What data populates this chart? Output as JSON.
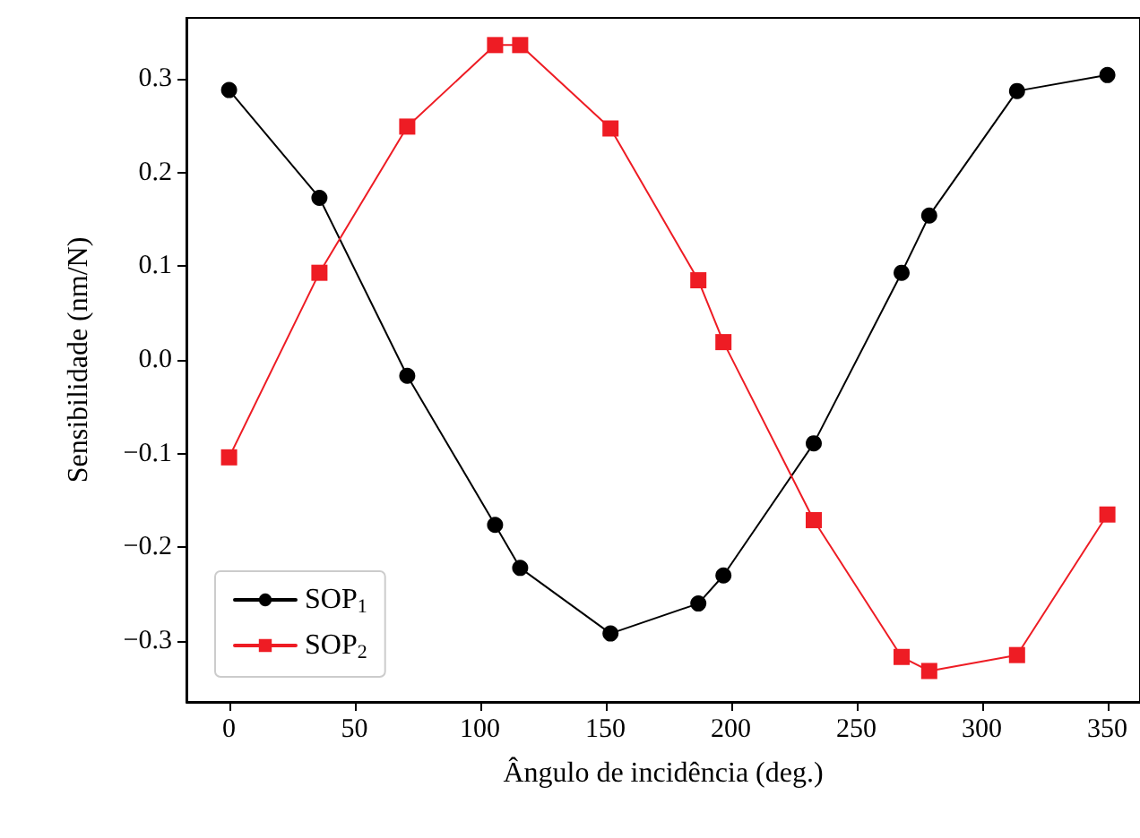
{
  "chart_data": {
    "type": "line",
    "xlabel": "Ângulo de incidência (deg.)",
    "ylabel": "Sensibilidade (nm/N)",
    "x": [
      0,
      36,
      71,
      106,
      116,
      152,
      187,
      197,
      233,
      268,
      279,
      314,
      350
    ],
    "series": [
      {
        "name": "SOP$_{1}$",
        "color": "#000000",
        "marker": "circle",
        "values": [
          0.288,
          0.173,
          -0.017,
          -0.176,
          -0.222,
          -0.292,
          -0.26,
          -0.23,
          -0.089,
          0.093,
          0.154,
          0.287,
          0.304
        ]
      },
      {
        "name": "SOP$_{2}$",
        "color": "#ee1c24",
        "marker": "square",
        "values": [
          -0.104,
          0.093,
          0.249,
          0.336,
          0.336,
          0.247,
          0.085,
          0.019,
          -0.171,
          -0.317,
          -0.332,
          -0.315,
          -0.165
        ]
      }
    ],
    "xlim": [
      -17,
      363
    ],
    "xticks": [
      0,
      50,
      100,
      150,
      200,
      250,
      300,
      350
    ],
    "ylim": [
      -0.365,
      0.365
    ],
    "yticks": [
      {
        "value": -0.3,
        "label": "−0.3"
      },
      {
        "value": -0.2,
        "label": "−0.2"
      },
      {
        "value": -0.1,
        "label": "−0.1"
      },
      {
        "value": 0,
        "label": "0.0"
      },
      {
        "value": 0.1,
        "label": "0.1"
      },
      {
        "value": 0.2,
        "label": "0.2"
      },
      {
        "value": 0.3,
        "label": "0.3"
      }
    ],
    "grid": false,
    "legend": "bottom left",
    "line_style": "solid"
  }
}
